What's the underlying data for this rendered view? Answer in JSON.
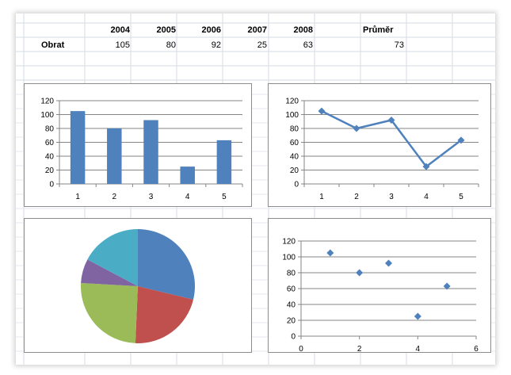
{
  "spreadsheet": {
    "years": [
      "2004",
      "2005",
      "2006",
      "2007",
      "2008"
    ],
    "avg_header": "Průměr",
    "row_label": "Obrat",
    "values": [
      "105",
      "80",
      "92",
      "25",
      "63"
    ],
    "average": "73"
  },
  "chart_data": [
    {
      "type": "bar",
      "categories": [
        "1",
        "2",
        "3",
        "4",
        "5"
      ],
      "values": [
        105,
        80,
        92,
        25,
        63
      ],
      "ylim": [
        0,
        120
      ],
      "yticks": [
        "0",
        "20",
        "40",
        "60",
        "80",
        "100",
        "120"
      ],
      "grid": true,
      "color": "#4f81bd"
    },
    {
      "type": "line",
      "categories": [
        "1",
        "2",
        "3",
        "4",
        "5"
      ],
      "values": [
        105,
        80,
        92,
        25,
        63
      ],
      "ylim": [
        0,
        120
      ],
      "yticks": [
        "0",
        "20",
        "40",
        "60",
        "80",
        "100",
        "120"
      ],
      "grid": true,
      "marker": "diamond",
      "color": "#4f81bd"
    },
    {
      "type": "pie",
      "values": [
        105,
        80,
        92,
        25,
        63
      ],
      "colors": [
        "#4f81bd",
        "#c0504d",
        "#9bbb59",
        "#8064a2",
        "#4bacc6"
      ]
    },
    {
      "type": "scatter",
      "x": [
        1,
        2,
        3,
        4,
        5
      ],
      "y": [
        105,
        80,
        92,
        25,
        63
      ],
      "xlim": [
        0,
        6
      ],
      "ylim": [
        0,
        120
      ],
      "xticks": [
        "0",
        "2",
        "4",
        "6"
      ],
      "yticks": [
        "0",
        "20",
        "40",
        "60",
        "80",
        "100",
        "120"
      ],
      "grid": true,
      "marker": "diamond",
      "color": "#4f81bd"
    }
  ]
}
